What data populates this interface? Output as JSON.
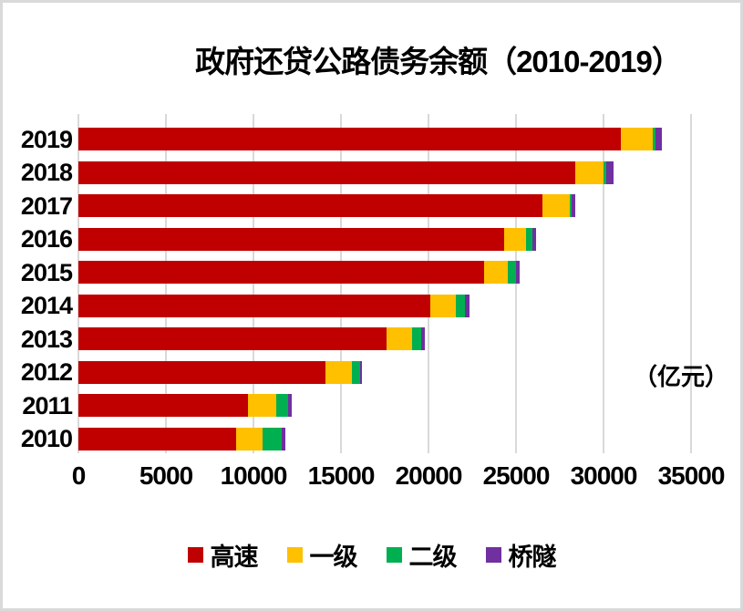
{
  "chart_data": {
    "type": "bar",
    "orientation": "horizontal",
    "stacked": true,
    "title": "政府还贷公路债务余额（2010-2019）",
    "unit_label": "（亿元）",
    "categories": [
      "2019",
      "2018",
      "2017",
      "2016",
      "2015",
      "2014",
      "2013",
      "2012",
      "2011",
      "2010"
    ],
    "series": [
      {
        "name": "高速",
        "key": "gaosu",
        "color": "#C00000",
        "values": [
          31000,
          28400,
          26500,
          24300,
          23200,
          20100,
          17600,
          14100,
          9700,
          9000
        ]
      },
      {
        "name": "一级",
        "key": "yiji",
        "color": "#FFC000",
        "values": [
          1800,
          1600,
          1560,
          1250,
          1340,
          1460,
          1460,
          1530,
          1610,
          1500
        ]
      },
      {
        "name": "二级",
        "key": "erji",
        "color": "#00B050",
        "values": [
          170,
          170,
          100,
          400,
          470,
          520,
          500,
          470,
          660,
          1090
        ]
      },
      {
        "name": "桥隧",
        "key": "qiaosui",
        "color": "#7030A0",
        "values": [
          350,
          430,
          230,
          180,
          210,
          240,
          210,
          120,
          210,
          240
        ]
      }
    ],
    "x_axis": {
      "min": 0,
      "max": 35000,
      "ticks": [
        0,
        5000,
        10000,
        15000,
        20000,
        25000,
        30000,
        35000
      ]
    },
    "y_axis": {
      "label": ""
    },
    "grid": true,
    "gridline_color": "#D9D9D9",
    "frame_color": "#D9D9D9",
    "legend_position": "bottom",
    "legend_entries": [
      "高速",
      "一级",
      "二级",
      "桥隧"
    ]
  }
}
